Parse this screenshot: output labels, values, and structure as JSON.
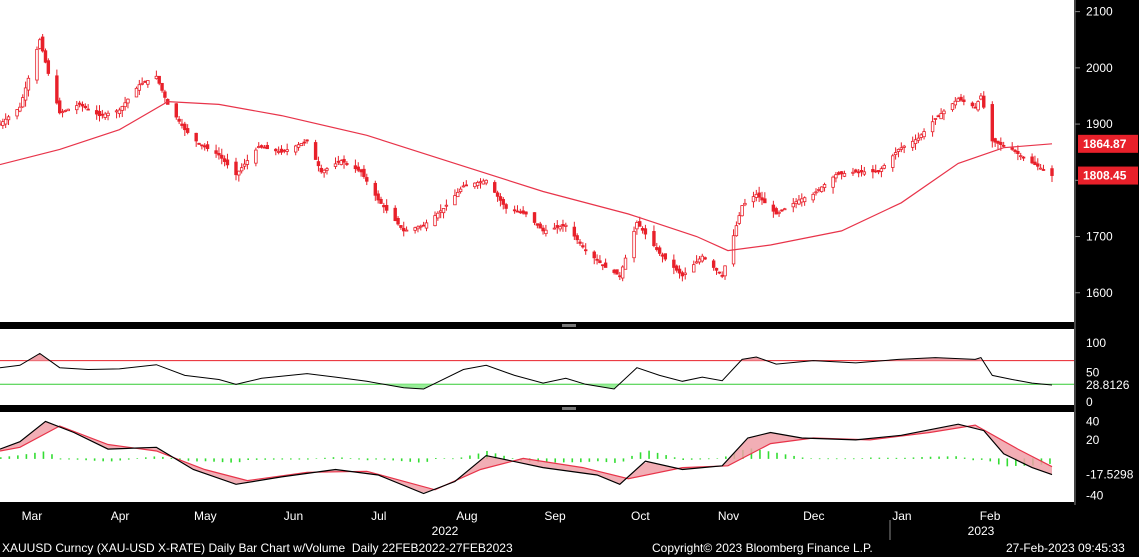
{
  "footer": {
    "left": "XAUUSD Curncy (XAU-USD X-RATE) Daily Bar Chart w/Volume  Daily 22FEB2022-27FEB2023",
    "center": "Copyright© 2023 Bloomberg Finance L.P.",
    "right": "27-Feb-2023 09:45:33"
  },
  "colors": {
    "background": "#000000",
    "panel_bg": "#ffffff",
    "candle": "#e8202a",
    "ma_line": "#e8344a",
    "stoch_line": "#000000",
    "upper_band": "#e8202a",
    "lower_band": "#33cc33",
    "hist_pos": "#33dd33",
    "cloud_red": "#f0a0a8",
    "cloud_gray": "#cccccc"
  },
  "chart_data": [
    {
      "type": "candlestick",
      "panel": "price",
      "ylim": [
        1580,
        2110
      ],
      "yticks": [
        "2100",
        "2000",
        "1900",
        "1800",
        "1700",
        "1600"
      ],
      "last_price_label": "1808.45",
      "ma_label": "1864.87",
      "x_months": [
        "Mar",
        "Apr",
        "May",
        "Jun",
        "Jul",
        "Aug",
        "Sep",
        "Oct",
        "Nov",
        "Dec",
        "Jan",
        "Feb"
      ],
      "year_labels": [
        "2022",
        "2023"
      ],
      "close_series": [
        {
          "d": "2022-02-22",
          "v": 1900
        },
        {
          "d": "2022-03-01",
          "v": 1930
        },
        {
          "d": "2022-03-08",
          "v": 2050
        },
        {
          "d": "2022-03-11",
          "v": 1990
        },
        {
          "d": "2022-03-15",
          "v": 1920
        },
        {
          "d": "2022-03-22",
          "v": 1935
        },
        {
          "d": "2022-03-29",
          "v": 1915
        },
        {
          "d": "2022-04-05",
          "v": 1925
        },
        {
          "d": "2022-04-12",
          "v": 1970
        },
        {
          "d": "2022-04-18",
          "v": 1985
        },
        {
          "d": "2022-04-22",
          "v": 1935
        },
        {
          "d": "2022-04-28",
          "v": 1890
        },
        {
          "d": "2022-05-03",
          "v": 1865
        },
        {
          "d": "2022-05-10",
          "v": 1845
        },
        {
          "d": "2022-05-16",
          "v": 1810
        },
        {
          "d": "2022-05-24",
          "v": 1860
        },
        {
          "d": "2022-06-01",
          "v": 1850
        },
        {
          "d": "2022-06-10",
          "v": 1870
        },
        {
          "d": "2022-06-15",
          "v": 1815
        },
        {
          "d": "2022-06-22",
          "v": 1835
        },
        {
          "d": "2022-06-29",
          "v": 1815
        },
        {
          "d": "2022-07-05",
          "v": 1765
        },
        {
          "d": "2022-07-14",
          "v": 1710
        },
        {
          "d": "2022-07-21",
          "v": 1720
        },
        {
          "d": "2022-07-28",
          "v": 1750
        },
        {
          "d": "2022-08-04",
          "v": 1790
        },
        {
          "d": "2022-08-12",
          "v": 1800
        },
        {
          "d": "2022-08-19",
          "v": 1750
        },
        {
          "d": "2022-08-26",
          "v": 1740
        },
        {
          "d": "2022-09-01",
          "v": 1710
        },
        {
          "d": "2022-09-09",
          "v": 1720
        },
        {
          "d": "2022-09-16",
          "v": 1675
        },
        {
          "d": "2022-09-23",
          "v": 1645
        },
        {
          "d": "2022-09-28",
          "v": 1630
        },
        {
          "d": "2022-10-04",
          "v": 1725
        },
        {
          "d": "2022-10-12",
          "v": 1670
        },
        {
          "d": "2022-10-20",
          "v": 1630
        },
        {
          "d": "2022-10-27",
          "v": 1665
        },
        {
          "d": "2022-11-03",
          "v": 1630
        },
        {
          "d": "2022-11-10",
          "v": 1755
        },
        {
          "d": "2022-11-15",
          "v": 1775
        },
        {
          "d": "2022-11-22",
          "v": 1740
        },
        {
          "d": "2022-11-30",
          "v": 1765
        },
        {
          "d": "2022-12-05",
          "v": 1775
        },
        {
          "d": "2022-12-13",
          "v": 1810
        },
        {
          "d": "2022-12-20",
          "v": 1815
        },
        {
          "d": "2022-12-28",
          "v": 1815
        },
        {
          "d": "2023-01-04",
          "v": 1855
        },
        {
          "d": "2023-01-11",
          "v": 1875
        },
        {
          "d": "2023-01-17",
          "v": 1910
        },
        {
          "d": "2023-01-25",
          "v": 1945
        },
        {
          "d": "2023-01-31",
          "v": 1930
        },
        {
          "d": "2023-02-02",
          "v": 1950
        },
        {
          "d": "2023-02-06",
          "v": 1870
        },
        {
          "d": "2023-02-13",
          "v": 1855
        },
        {
          "d": "2023-02-17",
          "v": 1840
        },
        {
          "d": "2023-02-22",
          "v": 1825
        },
        {
          "d": "2023-02-27",
          "v": 1808.45
        }
      ],
      "ma_series": [
        {
          "d": "2022-02-22",
          "v": 1828
        },
        {
          "d": "2022-03-15",
          "v": 1855
        },
        {
          "d": "2022-04-05",
          "v": 1890
        },
        {
          "d": "2022-04-22",
          "v": 1940
        },
        {
          "d": "2022-05-10",
          "v": 1935
        },
        {
          "d": "2022-06-01",
          "v": 1915
        },
        {
          "d": "2022-07-01",
          "v": 1880
        },
        {
          "d": "2022-08-01",
          "v": 1830
        },
        {
          "d": "2022-09-01",
          "v": 1780
        },
        {
          "d": "2022-10-01",
          "v": 1740
        },
        {
          "d": "2022-10-25",
          "v": 1700
        },
        {
          "d": "2022-11-05",
          "v": 1675
        },
        {
          "d": "2022-11-20",
          "v": 1685
        },
        {
          "d": "2022-12-15",
          "v": 1710
        },
        {
          "d": "2023-01-05",
          "v": 1760
        },
        {
          "d": "2023-01-25",
          "v": 1830
        },
        {
          "d": "2023-02-10",
          "v": 1858
        },
        {
          "d": "2023-02-27",
          "v": 1864.87
        }
      ]
    },
    {
      "type": "line",
      "panel": "rsi",
      "ylim": [
        0,
        120
      ],
      "yticks": [
        "100",
        "50",
        "0"
      ],
      "upper_band": 70,
      "lower_band": 30,
      "last_label": "28.8126",
      "series": [
        {
          "d": "2022-02-22",
          "v": 58
        },
        {
          "d": "2022-03-01",
          "v": 62
        },
        {
          "d": "2022-03-08",
          "v": 82
        },
        {
          "d": "2022-03-15",
          "v": 58
        },
        {
          "d": "2022-03-25",
          "v": 55
        },
        {
          "d": "2022-04-05",
          "v": 56
        },
        {
          "d": "2022-04-18",
          "v": 63
        },
        {
          "d": "2022-04-28",
          "v": 45
        },
        {
          "d": "2022-05-10",
          "v": 38
        },
        {
          "d": "2022-05-16",
          "v": 30
        },
        {
          "d": "2022-05-25",
          "v": 40
        },
        {
          "d": "2022-06-10",
          "v": 48
        },
        {
          "d": "2022-06-20",
          "v": 42
        },
        {
          "d": "2022-07-01",
          "v": 35
        },
        {
          "d": "2022-07-14",
          "v": 24
        },
        {
          "d": "2022-07-21",
          "v": 22
        },
        {
          "d": "2022-08-04",
          "v": 55
        },
        {
          "d": "2022-08-12",
          "v": 62
        },
        {
          "d": "2022-08-22",
          "v": 45
        },
        {
          "d": "2022-09-01",
          "v": 32
        },
        {
          "d": "2022-09-09",
          "v": 40
        },
        {
          "d": "2022-09-16",
          "v": 30
        },
        {
          "d": "2022-09-26",
          "v": 22
        },
        {
          "d": "2022-10-04",
          "v": 58
        },
        {
          "d": "2022-10-12",
          "v": 45
        },
        {
          "d": "2022-10-20",
          "v": 35
        },
        {
          "d": "2022-10-27",
          "v": 42
        },
        {
          "d": "2022-11-03",
          "v": 36
        },
        {
          "d": "2022-11-10",
          "v": 72
        },
        {
          "d": "2022-11-15",
          "v": 76
        },
        {
          "d": "2022-11-22",
          "v": 64
        },
        {
          "d": "2022-12-05",
          "v": 70
        },
        {
          "d": "2022-12-20",
          "v": 66
        },
        {
          "d": "2023-01-04",
          "v": 72
        },
        {
          "d": "2023-01-17",
          "v": 75
        },
        {
          "d": "2023-01-31",
          "v": 72
        },
        {
          "d": "2023-02-02",
          "v": 75
        },
        {
          "d": "2023-02-06",
          "v": 45
        },
        {
          "d": "2023-02-13",
          "v": 38
        },
        {
          "d": "2023-02-20",
          "v": 32
        },
        {
          "d": "2023-02-27",
          "v": 28.8126
        }
      ]
    },
    {
      "type": "line",
      "panel": "macd",
      "ylim": [
        -45,
        48
      ],
      "yticks": [
        "40",
        "20",
        "-40"
      ],
      "last_label": "-17.5298",
      "macd": [
        {
          "d": "2022-02-22",
          "v": 10
        },
        {
          "d": "2022-03-01",
          "v": 18
        },
        {
          "d": "2022-03-10",
          "v": 40
        },
        {
          "d": "2022-03-20",
          "v": 28
        },
        {
          "d": "2022-04-01",
          "v": 10
        },
        {
          "d": "2022-04-18",
          "v": 12
        },
        {
          "d": "2022-05-01",
          "v": -12
        },
        {
          "d": "2022-05-16",
          "v": -28
        },
        {
          "d": "2022-06-01",
          "v": -20
        },
        {
          "d": "2022-06-20",
          "v": -12
        },
        {
          "d": "2022-07-05",
          "v": -18
        },
        {
          "d": "2022-07-21",
          "v": -38
        },
        {
          "d": "2022-08-01",
          "v": -25
        },
        {
          "d": "2022-08-12",
          "v": 3
        },
        {
          "d": "2022-09-01",
          "v": -10
        },
        {
          "d": "2022-09-20",
          "v": -18
        },
        {
          "d": "2022-09-28",
          "v": -28
        },
        {
          "d": "2022-10-07",
          "v": -3
        },
        {
          "d": "2022-10-20",
          "v": -12
        },
        {
          "d": "2022-11-03",
          "v": -8
        },
        {
          "d": "2022-11-12",
          "v": 22
        },
        {
          "d": "2022-11-20",
          "v": 28
        },
        {
          "d": "2022-12-01",
          "v": 22
        },
        {
          "d": "2022-12-20",
          "v": 20
        },
        {
          "d": "2023-01-05",
          "v": 25
        },
        {
          "d": "2023-01-25",
          "v": 37
        },
        {
          "d": "2023-02-03",
          "v": 30
        },
        {
          "d": "2023-02-10",
          "v": 5
        },
        {
          "d": "2023-02-20",
          "v": -10
        },
        {
          "d": "2023-02-27",
          "v": -17.5298
        }
      ],
      "signal": [
        {
          "d": "2022-02-22",
          "v": 8
        },
        {
          "d": "2022-03-01",
          "v": 12
        },
        {
          "d": "2022-03-15",
          "v": 35
        },
        {
          "d": "2022-04-01",
          "v": 15
        },
        {
          "d": "2022-04-18",
          "v": 8
        },
        {
          "d": "2022-05-05",
          "v": -12
        },
        {
          "d": "2022-05-20",
          "v": -24
        },
        {
          "d": "2022-06-10",
          "v": -15
        },
        {
          "d": "2022-07-01",
          "v": -14
        },
        {
          "d": "2022-07-25",
          "v": -34
        },
        {
          "d": "2022-08-10",
          "v": -12
        },
        {
          "d": "2022-08-25",
          "v": 0
        },
        {
          "d": "2022-09-15",
          "v": -10
        },
        {
          "d": "2022-10-01",
          "v": -22
        },
        {
          "d": "2022-10-20",
          "v": -10
        },
        {
          "d": "2022-11-05",
          "v": -8
        },
        {
          "d": "2022-11-20",
          "v": 16
        },
        {
          "d": "2022-12-05",
          "v": 22
        },
        {
          "d": "2022-12-25",
          "v": 20
        },
        {
          "d": "2023-01-15",
          "v": 28
        },
        {
          "d": "2023-01-31",
          "v": 36
        },
        {
          "d": "2023-02-15",
          "v": 10
        },
        {
          "d": "2023-02-27",
          "v": -9
        }
      ]
    }
  ]
}
